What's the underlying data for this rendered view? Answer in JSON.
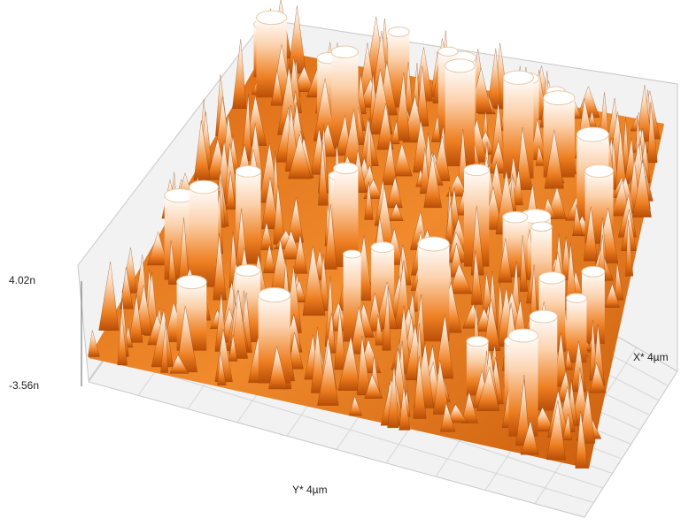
{
  "plot": {
    "z_max_label": "4.02n",
    "z_min_label": "-3.56n",
    "x_axis_label": "X* 4µm",
    "y_axis_label": "Y* 4µm"
  }
}
